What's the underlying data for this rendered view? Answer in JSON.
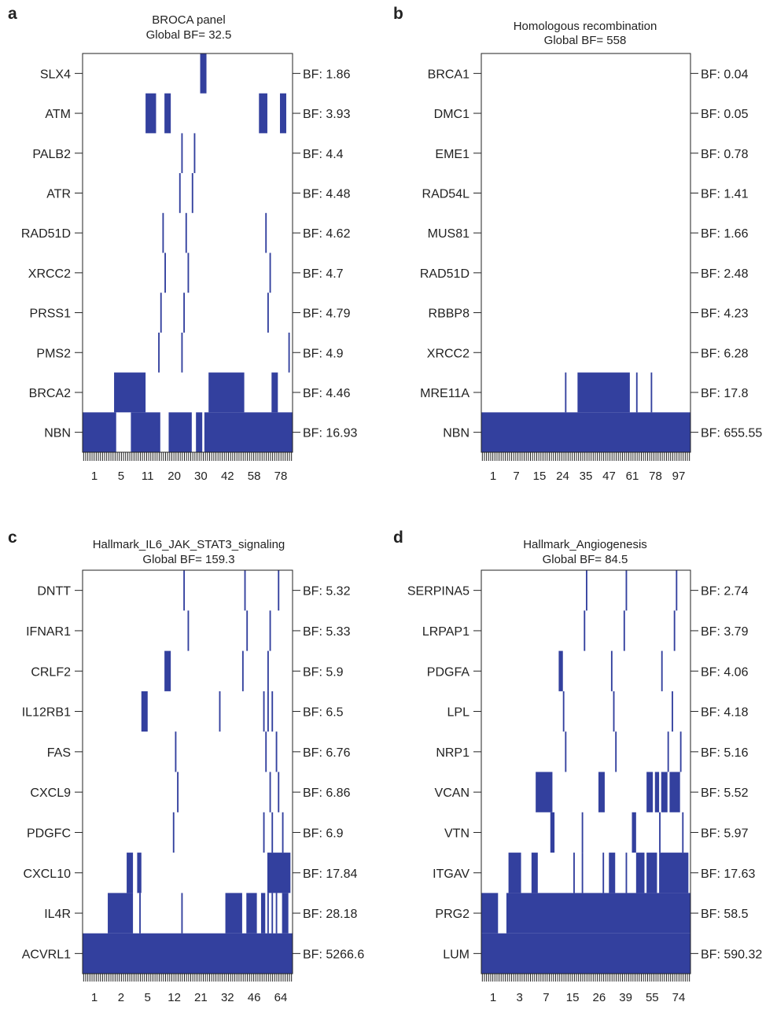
{
  "colors": {
    "mark": "#33409e",
    "frame": "#222222",
    "background": "#ffffff"
  },
  "chart_data": [
    {
      "type": "heatmap",
      "panel": "a",
      "title": "BROCA panel",
      "subtitle": "Global BF= 32.5",
      "n_columns": 100,
      "column_tick_labels": [
        "1",
        "5",
        "11",
        "20",
        "30",
        "42",
        "58",
        "78"
      ],
      "rows": [
        {
          "gene": "SLX4",
          "bf": "BF: 1.86",
          "cols": [
            56,
            57,
            58
          ]
        },
        {
          "gene": "ATM",
          "bf": "BF: 3.93",
          "cols": [
            30,
            31,
            32,
            33,
            34,
            39,
            40,
            41,
            84,
            85,
            86,
            87,
            94,
            95,
            96
          ]
        },
        {
          "gene": "PALB2",
          "bf": "BF: 4.4",
          "cols": [
            47,
            53
          ]
        },
        {
          "gene": "ATR",
          "bf": "BF: 4.48",
          "cols": [
            46,
            52
          ]
        },
        {
          "gene": "RAD51D",
          "bf": "BF: 4.62",
          "cols": [
            38,
            49,
            87
          ]
        },
        {
          "gene": "XRCC2",
          "bf": "BF: 4.7",
          "cols": [
            39,
            50,
            89
          ]
        },
        {
          "gene": "PRSS1",
          "bf": "BF: 4.79",
          "cols": [
            37,
            48,
            88
          ]
        },
        {
          "gene": "PMS2",
          "bf": "BF: 4.9",
          "cols": [
            36,
            47,
            98
          ]
        },
        {
          "gene": "BRCA2",
          "bf": "BF: 4.46",
          "cols": [
            15,
            16,
            17,
            18,
            19,
            20,
            21,
            22,
            23,
            24,
            25,
            26,
            27,
            28,
            29,
            60,
            61,
            62,
            63,
            64,
            65,
            66,
            67,
            68,
            69,
            70,
            71,
            72,
            73,
            74,
            75,
            76,
            90,
            91,
            92
          ]
        },
        {
          "gene": "NBN",
          "bf": "BF: 16.93",
          "cols": [
            0,
            1,
            2,
            3,
            4,
            5,
            6,
            7,
            8,
            9,
            10,
            11,
            12,
            13,
            14,
            15,
            23,
            24,
            25,
            26,
            27,
            28,
            29,
            30,
            31,
            32,
            33,
            34,
            35,
            36,
            41,
            42,
            43,
            44,
            45,
            46,
            47,
            48,
            49,
            50,
            51,
            54,
            55,
            56,
            58,
            59,
            60,
            61,
            62,
            63,
            64,
            65,
            66,
            67,
            68,
            69,
            70,
            71,
            72,
            73,
            74,
            75,
            76,
            77,
            78,
            79,
            80,
            81,
            82,
            83,
            84,
            85,
            86,
            87,
            88,
            89,
            90,
            91,
            92,
            93,
            94,
            95,
            96,
            97,
            98,
            99
          ]
        }
      ]
    },
    {
      "type": "heatmap",
      "panel": "b",
      "title": "Homologous recombination",
      "subtitle": "Global BF= 558",
      "n_columns": 100,
      "column_tick_labels": [
        "1",
        "7",
        "15",
        "24",
        "35",
        "47",
        "61",
        "78",
        "97"
      ],
      "rows": [
        {
          "gene": "BRCA1",
          "bf": "BF: 0.04",
          "cols": []
        },
        {
          "gene": "DMC1",
          "bf": "BF: 0.05",
          "cols": []
        },
        {
          "gene": "EME1",
          "bf": "BF: 0.78",
          "cols": []
        },
        {
          "gene": "RAD54L",
          "bf": "BF: 1.41",
          "cols": []
        },
        {
          "gene": "MUS81",
          "bf": "BF: 1.66",
          "cols": []
        },
        {
          "gene": "RAD51D",
          "bf": "BF: 2.48",
          "cols": []
        },
        {
          "gene": "RBBP8",
          "bf": "BF: 4.23",
          "cols": []
        },
        {
          "gene": "XRCC2",
          "bf": "BF: 6.28",
          "cols": []
        },
        {
          "gene": "MRE11A",
          "bf": "BF: 17.8",
          "cols": [
            40,
            46,
            47,
            48,
            49,
            50,
            51,
            52,
            53,
            54,
            55,
            56,
            57,
            58,
            59,
            60,
            61,
            62,
            63,
            64,
            65,
            66,
            67,
            68,
            69,
            70,
            74,
            81
          ]
        },
        {
          "gene": "NBN",
          "bf": "BF: 655.55",
          "cols": [
            0,
            1,
            2,
            3,
            4,
            5,
            6,
            7,
            8,
            9,
            10,
            11,
            12,
            13,
            14,
            15,
            16,
            17,
            18,
            19,
            20,
            21,
            22,
            23,
            24,
            25,
            26,
            27,
            28,
            29,
            30,
            31,
            32,
            33,
            34,
            35,
            36,
            37,
            38,
            39,
            40,
            41,
            42,
            43,
            44,
            45,
            46,
            47,
            48,
            49,
            50,
            51,
            52,
            53,
            54,
            55,
            56,
            57,
            58,
            59,
            60,
            61,
            62,
            63,
            64,
            65,
            66,
            67,
            68,
            69,
            70,
            71,
            72,
            73,
            74,
            75,
            76,
            77,
            78,
            79,
            80,
            81,
            82,
            83,
            84,
            85,
            86,
            87,
            88,
            89,
            90,
            91,
            92,
            93,
            94,
            95,
            96,
            97,
            98,
            99
          ]
        }
      ]
    },
    {
      "type": "heatmap",
      "panel": "c",
      "title": "Hallmark_IL6_JAK_STAT3_signaling",
      "subtitle": "Global BF= 159.3",
      "n_columns": 100,
      "column_tick_labels": [
        "1",
        "2",
        "5",
        "12",
        "21",
        "32",
        "46",
        "64"
      ],
      "rows": [
        {
          "gene": "DNTT",
          "bf": "BF: 5.32",
          "cols": [
            48,
            77,
            93
          ]
        },
        {
          "gene": "IFNAR1",
          "bf": "BF: 5.33",
          "cols": [
            50,
            78,
            89
          ]
        },
        {
          "gene": "CRLF2",
          "bf": "BF: 5.9",
          "cols": [
            39,
            40,
            41,
            76,
            88
          ]
        },
        {
          "gene": "IL12RB1",
          "bf": "BF: 6.5",
          "cols": [
            28,
            29,
            30,
            65,
            86,
            88,
            90
          ]
        },
        {
          "gene": "FAS",
          "bf": "BF: 6.76",
          "cols": [
            44,
            87,
            92
          ]
        },
        {
          "gene": "CXCL9",
          "bf": "BF: 6.86",
          "cols": [
            45,
            89,
            93
          ]
        },
        {
          "gene": "PDGFC",
          "bf": "BF: 6.9",
          "cols": [
            43,
            86,
            90,
            95
          ]
        },
        {
          "gene": "CXCL10",
          "bf": "BF: 17.84",
          "cols": [
            21,
            22,
            23,
            26,
            27,
            88,
            89,
            90,
            91,
            92,
            93,
            94,
            95,
            96,
            97,
            98
          ]
        },
        {
          "gene": "IL4R",
          "bf": "BF: 28.18",
          "cols": [
            12,
            13,
            14,
            15,
            16,
            17,
            18,
            19,
            20,
            21,
            22,
            23,
            27,
            47,
            68,
            69,
            70,
            71,
            72,
            73,
            74,
            75,
            78,
            79,
            80,
            81,
            82,
            85,
            86,
            88,
            90,
            92,
            95,
            96,
            97
          ]
        },
        {
          "gene": "ACVRL1",
          "bf": "BF: 5266.6",
          "cols": [
            0,
            1,
            2,
            3,
            4,
            5,
            6,
            7,
            8,
            9,
            10,
            11,
            12,
            13,
            14,
            15,
            16,
            17,
            18,
            19,
            20,
            21,
            22,
            23,
            24,
            25,
            26,
            27,
            28,
            29,
            30,
            31,
            32,
            33,
            34,
            35,
            36,
            37,
            38,
            39,
            40,
            41,
            42,
            43,
            44,
            45,
            46,
            47,
            48,
            49,
            50,
            51,
            52,
            53,
            54,
            55,
            56,
            57,
            58,
            59,
            60,
            61,
            62,
            63,
            64,
            65,
            66,
            67,
            68,
            69,
            70,
            71,
            72,
            73,
            74,
            75,
            76,
            77,
            78,
            79,
            80,
            81,
            82,
            83,
            84,
            85,
            86,
            87,
            88,
            89,
            90,
            91,
            92,
            93,
            94,
            95,
            96,
            97,
            98,
            99
          ]
        }
      ]
    },
    {
      "type": "heatmap",
      "panel": "d",
      "title": "Hallmark_Angiogenesis",
      "subtitle": "Global BF= 84.5",
      "n_columns": 100,
      "column_tick_labels": [
        "1",
        "3",
        "7",
        "15",
        "26",
        "39",
        "55",
        "74"
      ],
      "rows": [
        {
          "gene": "SERPINA5",
          "bf": "BF: 2.74",
          "cols": [
            50,
            69,
            93
          ]
        },
        {
          "gene": "LRPAP1",
          "bf": "BF: 3.79",
          "cols": [
            49,
            68,
            92
          ]
        },
        {
          "gene": "PDGFA",
          "bf": "BF: 4.06",
          "cols": [
            37,
            38,
            62,
            86
          ]
        },
        {
          "gene": "LPL",
          "bf": "BF: 4.18",
          "cols": [
            39,
            63,
            91
          ]
        },
        {
          "gene": "NRP1",
          "bf": "BF: 5.16",
          "cols": [
            40,
            64,
            89,
            95
          ]
        },
        {
          "gene": "VCAN",
          "bf": "BF: 5.52",
          "cols": [
            26,
            27,
            28,
            29,
            30,
            31,
            32,
            33,
            56,
            57,
            58,
            79,
            80,
            81,
            83,
            84,
            86,
            87,
            88,
            90,
            91,
            92,
            93,
            94
          ]
        },
        {
          "gene": "VTN",
          "bf": "BF: 5.97",
          "cols": [
            33,
            34,
            48,
            72,
            73,
            85,
            96
          ]
        },
        {
          "gene": "ITGAV",
          "bf": "BF: 17.63",
          "cols": [
            13,
            14,
            15,
            16,
            17,
            18,
            24,
            25,
            26,
            44,
            48,
            58,
            61,
            62,
            63,
            69,
            74,
            75,
            76,
            77,
            79,
            80,
            81,
            82,
            83,
            85,
            86,
            87,
            88,
            89,
            90,
            91,
            92,
            93,
            94,
            95,
            96,
            97,
            98
          ]
        },
        {
          "gene": "PRG2",
          "bf": "BF: 58.5",
          "cols": [
            0,
            1,
            2,
            3,
            4,
            5,
            6,
            7,
            12,
            13,
            14,
            15,
            16,
            17,
            18,
            19,
            20,
            21,
            22,
            23,
            24,
            25,
            26,
            27,
            28,
            29,
            30,
            31,
            32,
            33,
            34,
            35,
            36,
            37,
            38,
            39,
            40,
            41,
            42,
            43,
            44,
            45,
            46,
            47,
            48,
            49,
            50,
            51,
            52,
            53,
            54,
            55,
            56,
            57,
            58,
            59,
            60,
            61,
            62,
            63,
            64,
            65,
            66,
            67,
            68,
            69,
            70,
            71,
            72,
            73,
            74,
            75,
            76,
            77,
            78,
            79,
            80,
            81,
            82,
            83,
            84,
            85,
            86,
            87,
            88,
            89,
            90,
            91,
            92,
            93,
            94,
            95,
            96,
            97,
            98,
            99
          ]
        },
        {
          "gene": "LUM",
          "bf": "BF: 590.32",
          "cols": [
            0,
            1,
            2,
            3,
            4,
            5,
            6,
            7,
            8,
            9,
            10,
            11,
            12,
            13,
            14,
            15,
            16,
            17,
            18,
            19,
            20,
            21,
            22,
            23,
            24,
            25,
            26,
            27,
            28,
            29,
            30,
            31,
            32,
            33,
            34,
            35,
            36,
            37,
            38,
            39,
            40,
            41,
            42,
            43,
            44,
            45,
            46,
            47,
            48,
            49,
            50,
            51,
            52,
            53,
            54,
            55,
            56,
            57,
            58,
            59,
            60,
            61,
            62,
            63,
            64,
            65,
            66,
            67,
            68,
            69,
            70,
            71,
            72,
            73,
            74,
            75,
            76,
            77,
            78,
            79,
            80,
            81,
            82,
            83,
            84,
            85,
            86,
            87,
            88,
            89,
            90,
            91,
            92,
            93,
            94,
            95,
            96,
            97,
            98,
            99
          ]
        }
      ]
    }
  ]
}
